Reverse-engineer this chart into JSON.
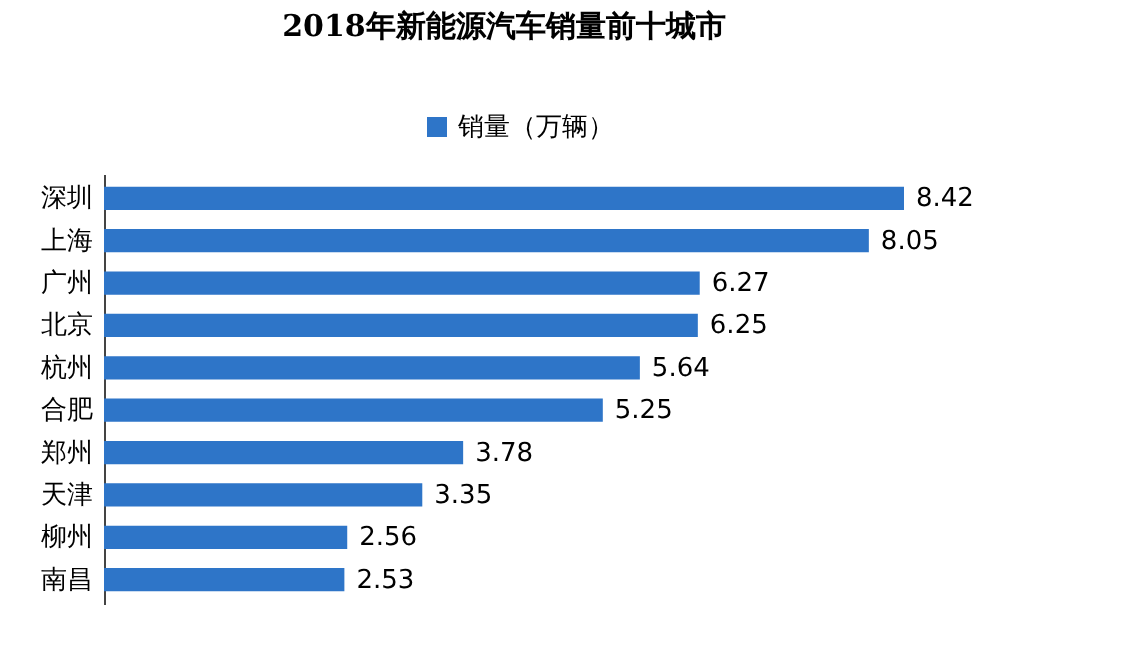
{
  "chart_data": {
    "type": "bar",
    "orientation": "horizontal",
    "title": "2018年新能源汽车销量前十城市",
    "categories": [
      "深圳",
      "上海",
      "广州",
      "北京",
      "杭州",
      "合肥",
      "郑州",
      "天津",
      "柳州",
      "南昌"
    ],
    "series": [
      {
        "name": "销量（万辆）",
        "color": "#2e75c8",
        "values": [
          8.42,
          8.05,
          6.27,
          6.25,
          5.64,
          5.25,
          3.78,
          3.35,
          2.56,
          2.53
        ]
      }
    ],
    "data_labels": true,
    "legend": "top"
  }
}
